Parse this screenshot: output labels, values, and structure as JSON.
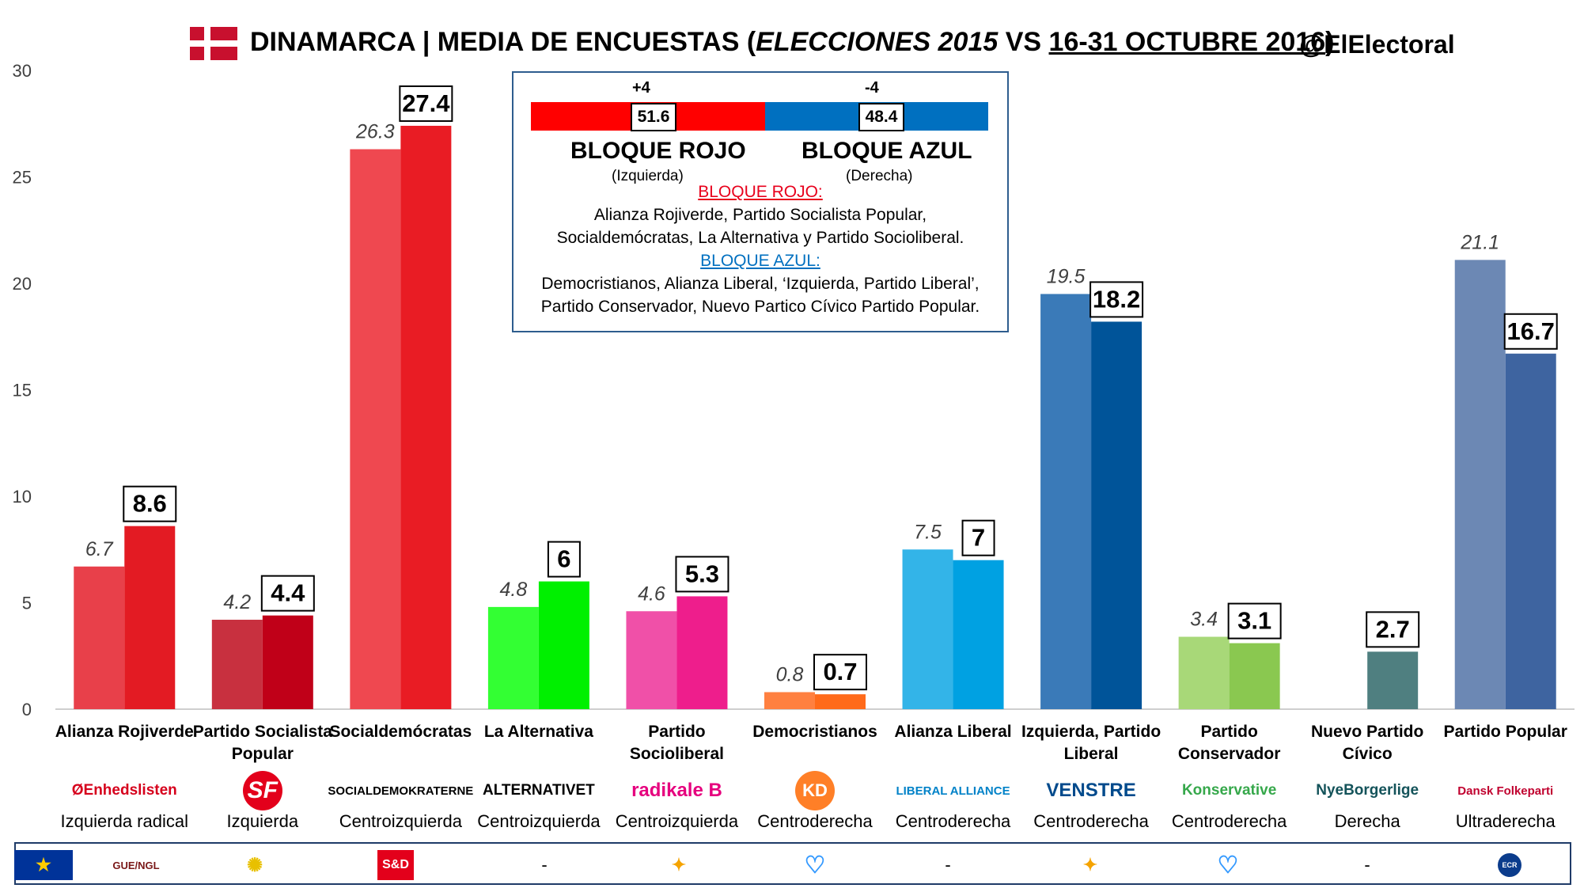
{
  "header": {
    "title_main": "DINAMARCA | MEDIA DE ENCUESTAS (",
    "title_italic": "ELECCIONES 2015",
    "title_vs": " VS ",
    "title_underlined": "16-31 OCTUBRE 2016",
    "title_close": ")",
    "handle": "@ElElectoral",
    "flag_colors": {
      "field": "#c8102e",
      "cross": "#ffffff"
    }
  },
  "blocs": {
    "red": {
      "change": "+4",
      "value": "51.6",
      "name": "BLOQUE ROJO",
      "side": "(Izquierda)",
      "color": "#ff0000"
    },
    "blue": {
      "change": "-4",
      "value": "48.4",
      "name": "BLOQUE AZUL",
      "side": "(Derecha)",
      "color": "#0070c0"
    },
    "red_heading": "BLOQUE ROJO:",
    "red_members_1": "Alianza Rojiverde, Partido Socialista Popular,",
    "red_members_2": "Socialdemócratas, La Alternativa y Partido Socioliberal.",
    "blue_heading": "BLOQUE AZUL:",
    "blue_members_1": "Democristianos, Alianza Liberal, ‘Izquierda, Partido Liberal’,",
    "blue_members_2": "Partido Conservador, Nuevo Partico Cívico Partido Popular."
  },
  "chart_data": {
    "type": "bar",
    "title": "DINAMARCA | MEDIA DE ENCUESTAS (ELECCIONES 2015 VS 16-31 OCTUBRE 2016)",
    "ylim": [
      0,
      30
    ],
    "yticks": [
      0,
      5,
      10,
      15,
      20,
      25,
      30
    ],
    "grid": false,
    "categories": [
      "Alianza Rojiverde",
      "Partido Socialista Popular",
      "Socialdemócratas",
      "La Alternativa",
      "Partido Socioliberal",
      "Democristianos",
      "Alianza Liberal",
      "Izquierda, Partido Liberal",
      "Partido Conservador",
      "Nuevo Partido Cívico",
      "Partido Popular"
    ],
    "category_lines": [
      [
        "Alianza Rojiverde"
      ],
      [
        "Partido Socialista",
        "Popular"
      ],
      [
        "Socialdemócratas"
      ],
      [
        "La Alternativa"
      ],
      [
        "Partido",
        "Socioliberal"
      ],
      [
        "Democristianos"
      ],
      [
        "Alianza Liberal"
      ],
      [
        "Izquierda, Partido",
        "Liberal"
      ],
      [
        "Partido",
        "Conservador"
      ],
      [
        "Nuevo Partido",
        "Cívico"
      ],
      [
        "Partido Popular"
      ]
    ],
    "series": [
      {
        "values": [
          6.7,
          4.2,
          26.3,
          4.8,
          4.6,
          0.8,
          7.5,
          19.5,
          3.4,
          null,
          21.1
        ],
        "labels": [
          "6.7",
          "4.2",
          "26.3",
          "4.8",
          "4.6",
          "0.8",
          "7.5",
          "19.5",
          "3.4",
          "",
          "21.1"
        ]
      },
      {
        "values": [
          8.6,
          4.4,
          27.4,
          6,
          5.3,
          0.7,
          7,
          18.2,
          3.1,
          2.7,
          16.7
        ],
        "labels": [
          "8.6",
          "4.4",
          "27.4",
          "6",
          "5.3",
          "0.7",
          "7",
          "18.2",
          "3.1",
          "2.7",
          "16.7"
        ]
      }
    ],
    "colors_2015": [
      "#e8404a",
      "#c8303f",
      "#ef4850",
      "#33ff33",
      "#f050a8",
      "#ff8040",
      "#33b4e8",
      "#3a7ab8",
      "#a8d878",
      "#4f7f80",
      "#6c88b4"
    ],
    "colors_2016": [
      "#e31b23",
      "#c00018",
      "#e91c24",
      "#00f000",
      "#ee1e8c",
      "#ff6a1a",
      "#00a1e2",
      "#005499",
      "#8ac850",
      "#4f7f80",
      "#3e64a0"
    ]
  },
  "parties": [
    {
      "logo": "ØEnhedslisten",
      "logo_color": "#d6001c",
      "ideology": "Izquierda radical"
    },
    {
      "logo": "SF",
      "logo_color": "#e3001b",
      "ideology": "Izquierda"
    },
    {
      "logo": "SOCIALDEMOKRATERNE",
      "logo_color": "#000000",
      "ideology": "Centroizquierda"
    },
    {
      "logo": "ALTERNATIVET",
      "logo_color": "#000000",
      "ideology": "Centroizquierda"
    },
    {
      "logo": "radikale B",
      "logo_color": "#e6007e",
      "ideology": "Centroizquierda"
    },
    {
      "logo": "KD",
      "logo_color": "#ff7f27",
      "ideology": "Centroderecha"
    },
    {
      "logo": "LIBERAL ALLIANCE",
      "logo_color": "#0082c8",
      "ideology": "Centroderecha"
    },
    {
      "logo": "VENSTRE",
      "logo_color": "#004a8c",
      "ideology": "Centroderecha"
    },
    {
      "logo": "Konservative",
      "logo_color": "#36a84b",
      "ideology": "Centroderecha"
    },
    {
      "logo": "NyeBorgerlige",
      "logo_color": "#14535a",
      "ideology": "Derecha"
    },
    {
      "logo": "Dansk Folkeparti",
      "logo_color": "#c0002e",
      "ideology": "Ultraderecha"
    }
  ],
  "groups": [
    {
      "name": "eu-flag-icon"
    },
    {
      "name": "gue-ngl-logo",
      "text": "GUE/NGL"
    },
    {
      "name": "greens-efa-logo"
    },
    {
      "name": "s-and-d-logo",
      "text": "S&D"
    },
    {
      "name": "none",
      "text": "-"
    },
    {
      "name": "alde-logo"
    },
    {
      "name": "epp-logo"
    },
    {
      "name": "none",
      "text": "-"
    },
    {
      "name": "alde-logo"
    },
    {
      "name": "epp-logo"
    },
    {
      "name": "none",
      "text": "-"
    },
    {
      "name": "ecr-logo",
      "text": "ECR"
    }
  ]
}
